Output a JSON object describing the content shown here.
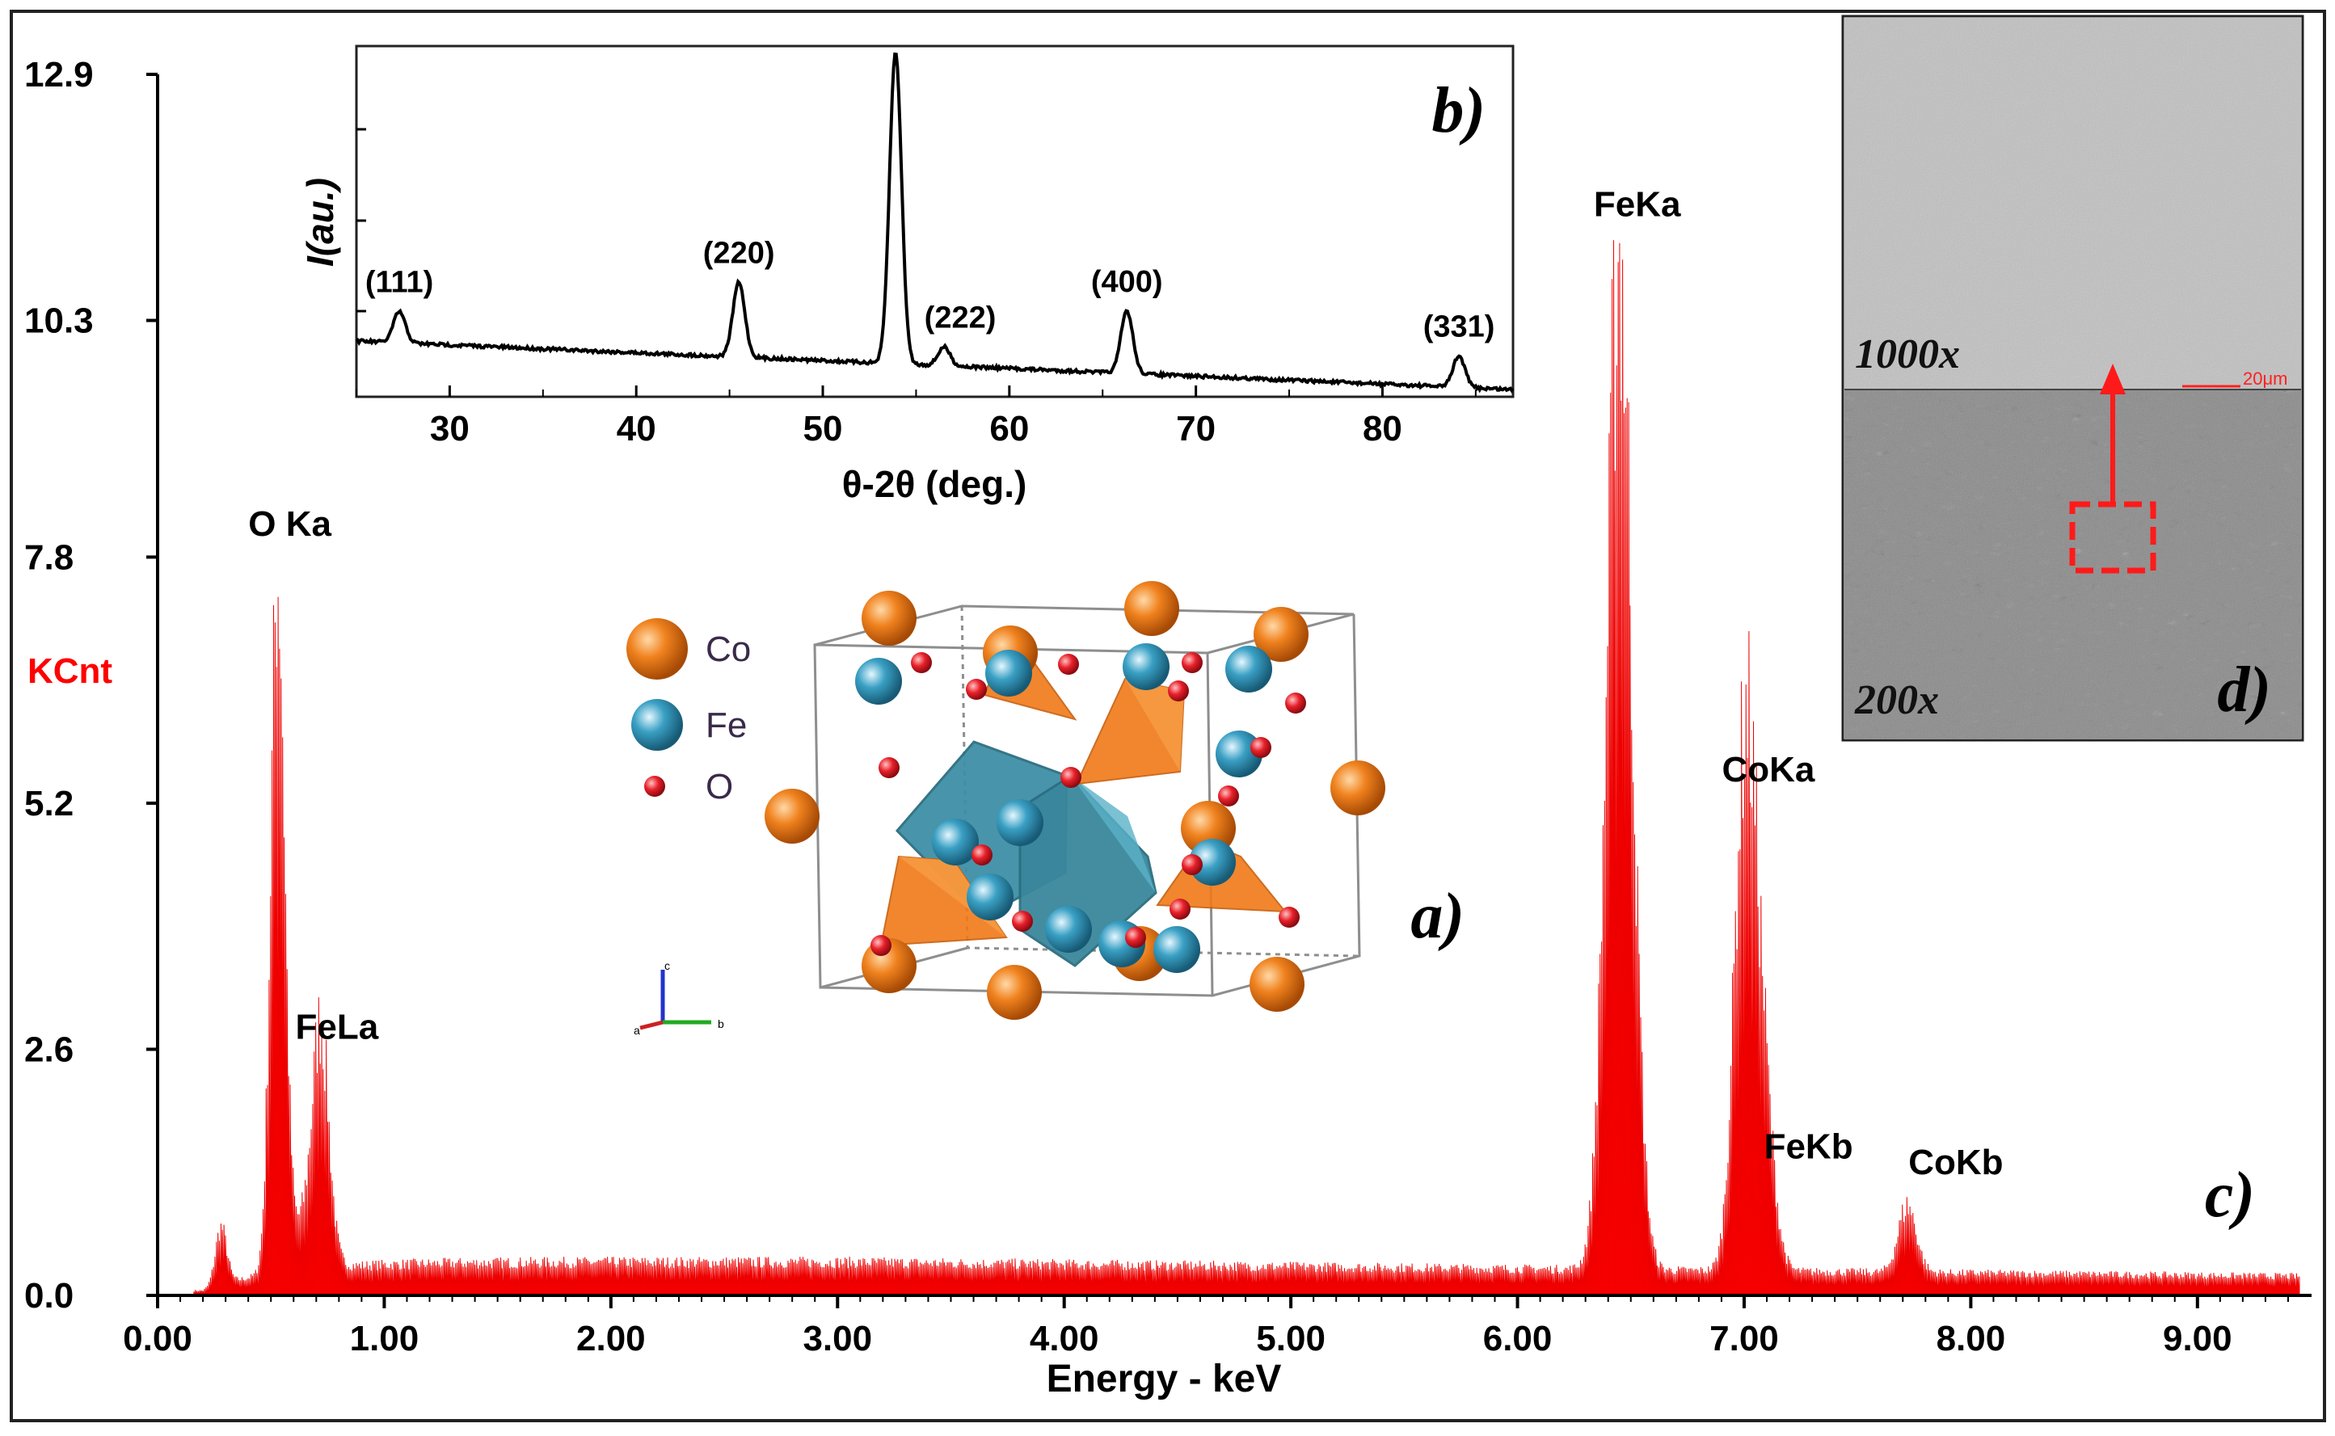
{
  "chart_data": [
    {
      "panel": "c)",
      "type": "bar",
      "title": "",
      "xlabel": "Energy - keV",
      "ylabel": "KCnt",
      "xlim": [
        0,
        9.45
      ],
      "ylim": [
        0,
        12.9
      ],
      "x_ticks": [
        "0.00",
        "1.00",
        "2.00",
        "3.00",
        "4.00",
        "5.00",
        "6.00",
        "7.00",
        "8.00",
        "9.00"
      ],
      "y_ticks": [
        "0.0",
        "2.6",
        "5.2",
        "7.8",
        "10.3",
        "12.9"
      ],
      "background": 0.3,
      "peaks": [
        {
          "label": "",
          "energy": 0.28,
          "height": 0.6,
          "width": 0.025
        },
        {
          "label": "O Ka",
          "energy": 0.53,
          "height": 7.3,
          "width": 0.03
        },
        {
          "label": "FeLa",
          "energy": 0.72,
          "height": 2.2,
          "width": 0.035
        },
        {
          "label": "FeKa",
          "energy": 6.45,
          "height": 10.7,
          "width": 0.055
        },
        {
          "label": "CoKa",
          "energy": 7.0,
          "height": 4.9,
          "width": 0.045
        },
        {
          "label": "FeKb",
          "energy": 7.07,
          "height": 2.3,
          "width": 0.05
        },
        {
          "label": "CoKb",
          "energy": 7.72,
          "height": 0.7,
          "width": 0.04
        }
      ],
      "bar_color": "#ff0000"
    },
    {
      "panel": "b)",
      "type": "line",
      "xlabel": "θ-2θ (deg.)",
      "ylabel": "I(au.)",
      "xlim": [
        25,
        87
      ],
      "x_ticks": [
        30,
        40,
        50,
        60,
        70,
        80
      ],
      "peaks": [
        {
          "label": "(111)",
          "angle": 27.3,
          "height": 0.1
        },
        {
          "label": "(220)",
          "angle": 45.5,
          "height": 0.24
        },
        {
          "label": "",
          "angle": 53.9,
          "height": 1.0
        },
        {
          "label": "(222)",
          "angle": 56.5,
          "height": 0.06
        },
        {
          "label": "(400)",
          "angle": 66.3,
          "height": 0.2
        },
        {
          "label": "(331)",
          "angle": 84.1,
          "height": 0.1
        }
      ]
    }
  ],
  "structure": {
    "panel": "a)",
    "legend": [
      {
        "symbol": "Co",
        "color": "#f0821e"
      },
      {
        "symbol": "Fe",
        "color": "#3aa0c4"
      },
      {
        "symbol": "O",
        "color": "#e8202a"
      }
    ],
    "axis_labels": [
      "c",
      "a",
      "b"
    ]
  },
  "sem": {
    "panel": "d)",
    "top_magnification": "1000x",
    "bottom_magnification": "200x",
    "scale_bar": "20μm"
  }
}
